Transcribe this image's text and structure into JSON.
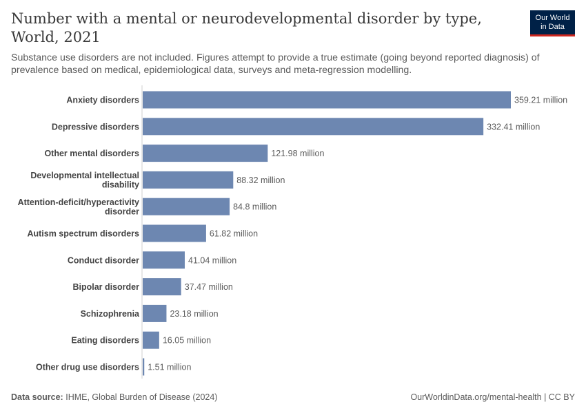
{
  "title": "Number with a mental or neurodevelopmental disorder by type, World, 2021",
  "subtitle": "Substance use disorders are not included. Figures attempt to provide a true estimate (going beyond reported diagnosis) of prevalence based on medical, epidemiological data, surveys and meta-regression modelling.",
  "logo": {
    "line1": "Our World",
    "line2": "in Data"
  },
  "footer": {
    "source_label": "Data source:",
    "source_text": "IHME, Global Burden of Disease (2024)",
    "credit": "OurWorldinData.org/mental-health | CC BY"
  },
  "colors": {
    "bar": "#6d87b1",
    "logo_bg": "#002147",
    "logo_accent": "#ce261e"
  },
  "chart_data": {
    "type": "bar",
    "orientation": "horizontal",
    "categories": [
      [
        "Anxiety disorders"
      ],
      [
        "Depressive disorders"
      ],
      [
        "Other mental disorders"
      ],
      [
        "Developmental intellectual",
        "disability"
      ],
      [
        "Attention-deficit/hyperactivity",
        "disorder"
      ],
      [
        "Autism spectrum disorders"
      ],
      [
        "Conduct disorder"
      ],
      [
        "Bipolar disorder"
      ],
      [
        "Schizophrenia"
      ],
      [
        "Eating disorders"
      ],
      [
        "Other drug use disorders"
      ]
    ],
    "values": [
      359.21,
      332.41,
      121.98,
      88.32,
      84.8,
      61.82,
      41.04,
      37.47,
      23.18,
      16.05,
      1.51
    ],
    "value_labels": [
      "359.21 million",
      "332.41 million",
      "121.98 million",
      "88.32 million",
      "84.8 million",
      "61.82 million",
      "41.04 million",
      "37.47 million",
      "23.18 million",
      "16.05 million",
      "1.51 million"
    ],
    "unit": "million",
    "xlim": [
      0,
      359.21
    ],
    "grid": false,
    "legend": "none"
  }
}
